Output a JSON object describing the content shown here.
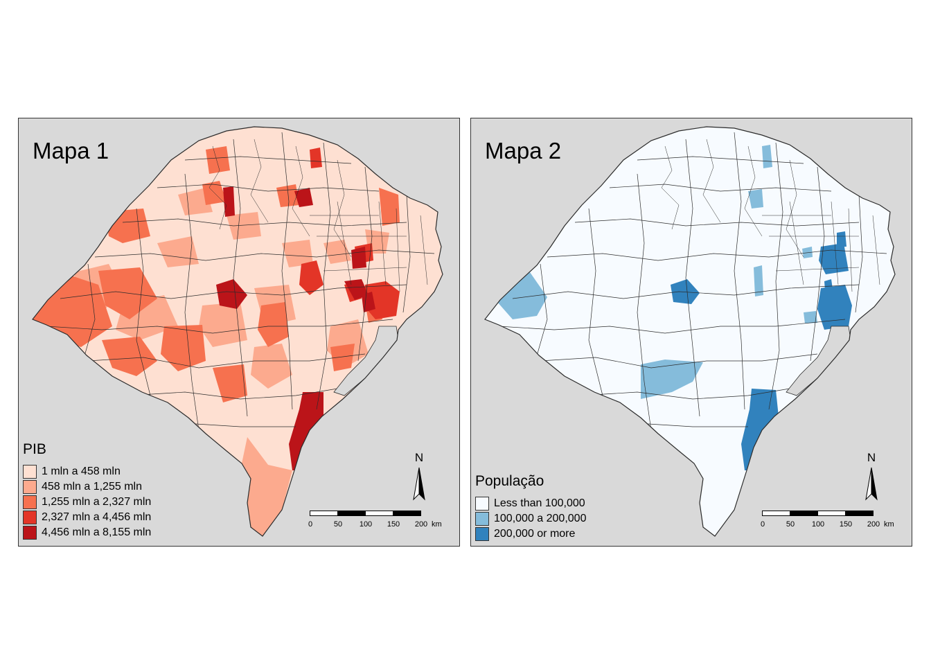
{
  "maps": [
    {
      "title": "Mapa 1",
      "legend": {
        "title": "PIB",
        "items": [
          {
            "label": "1 mln a 458 mln",
            "color": "#fee0d2"
          },
          {
            "label": "458 mln a 1,255 mln",
            "color": "#fcaa8e"
          },
          {
            "label": "1,255 mln a 2,327 mln",
            "color": "#f6714f"
          },
          {
            "label": "2,327 mln a 4,456 mln",
            "color": "#e33527"
          },
          {
            "label": "4,456 mln a 8,155 mln",
            "color": "#bb1419"
          }
        ]
      },
      "north_label": "N",
      "scale": {
        "ticks": [
          "0",
          "50",
          "100",
          "150",
          "200"
        ],
        "unit": "km"
      }
    },
    {
      "title": "Mapa 2",
      "legend": {
        "title": "População",
        "items": [
          {
            "label": "Less than 100,000",
            "color": "#f7fbff"
          },
          {
            "label": "100,000 a 200,000",
            "color": "#85bcdb"
          },
          {
            "label": "200,000 or more",
            "color": "#3182bd"
          }
        ]
      },
      "north_label": "N",
      "scale": {
        "ticks": [
          "0",
          "50",
          "100",
          "150",
          "200"
        ],
        "unit": "km"
      }
    }
  ],
  "colors": {
    "panel_background": "#d9d9d9",
    "border": "#333333",
    "lagoon": "#d9d9d9"
  }
}
